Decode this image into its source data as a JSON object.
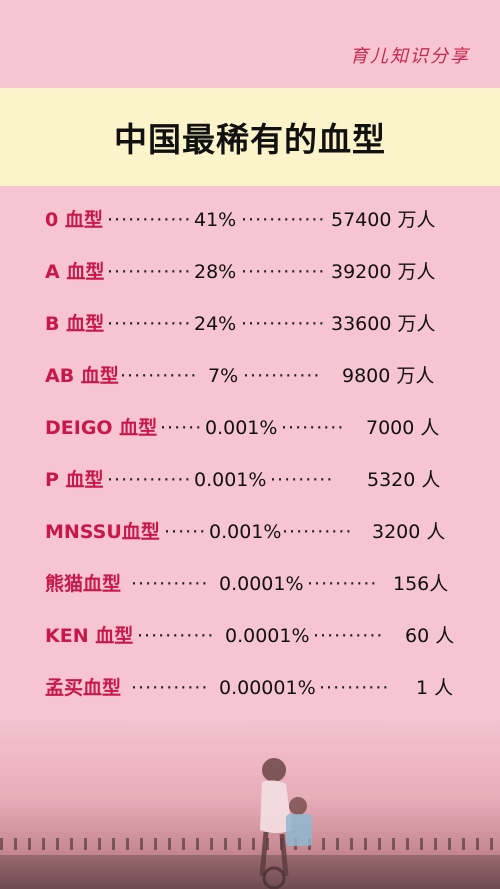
{
  "brand": "育儿知识分享",
  "title": "中国最稀有的血型",
  "rows": [
    {
      "type": "0 血型",
      "pct": "41%",
      "count": "57400 万人"
    },
    {
      "type": "A 血型",
      "pct": "28%",
      "count": "39200 万人"
    },
    {
      "type": "B 血型",
      "pct": "24%",
      "count": "33600 万人"
    },
    {
      "type": "AB 血型",
      "pct": "7%",
      "count": "9800 万人"
    },
    {
      "type": "DEIGO 血型",
      "pct": "0.001%",
      "count": "7000 人"
    },
    {
      "type": "P 血型",
      "pct": "0.001%",
      "count": "5320 人"
    },
    {
      "type": "MNSSU血型",
      "pct": "0.001%",
      "count": "3200 人"
    },
    {
      "type": "熊猫血型",
      "pct": "0.0001%",
      "count": "156人"
    },
    {
      "type": "KEN 血型",
      "pct": "0.0001%",
      "count": "60 人"
    },
    {
      "type": "孟买血型",
      "pct": "0.00001%",
      "count": "1 人"
    }
  ],
  "colors": {
    "background": "#f7c4d1",
    "title_band": "#fbf3c9",
    "accent": "#c8174a"
  }
}
